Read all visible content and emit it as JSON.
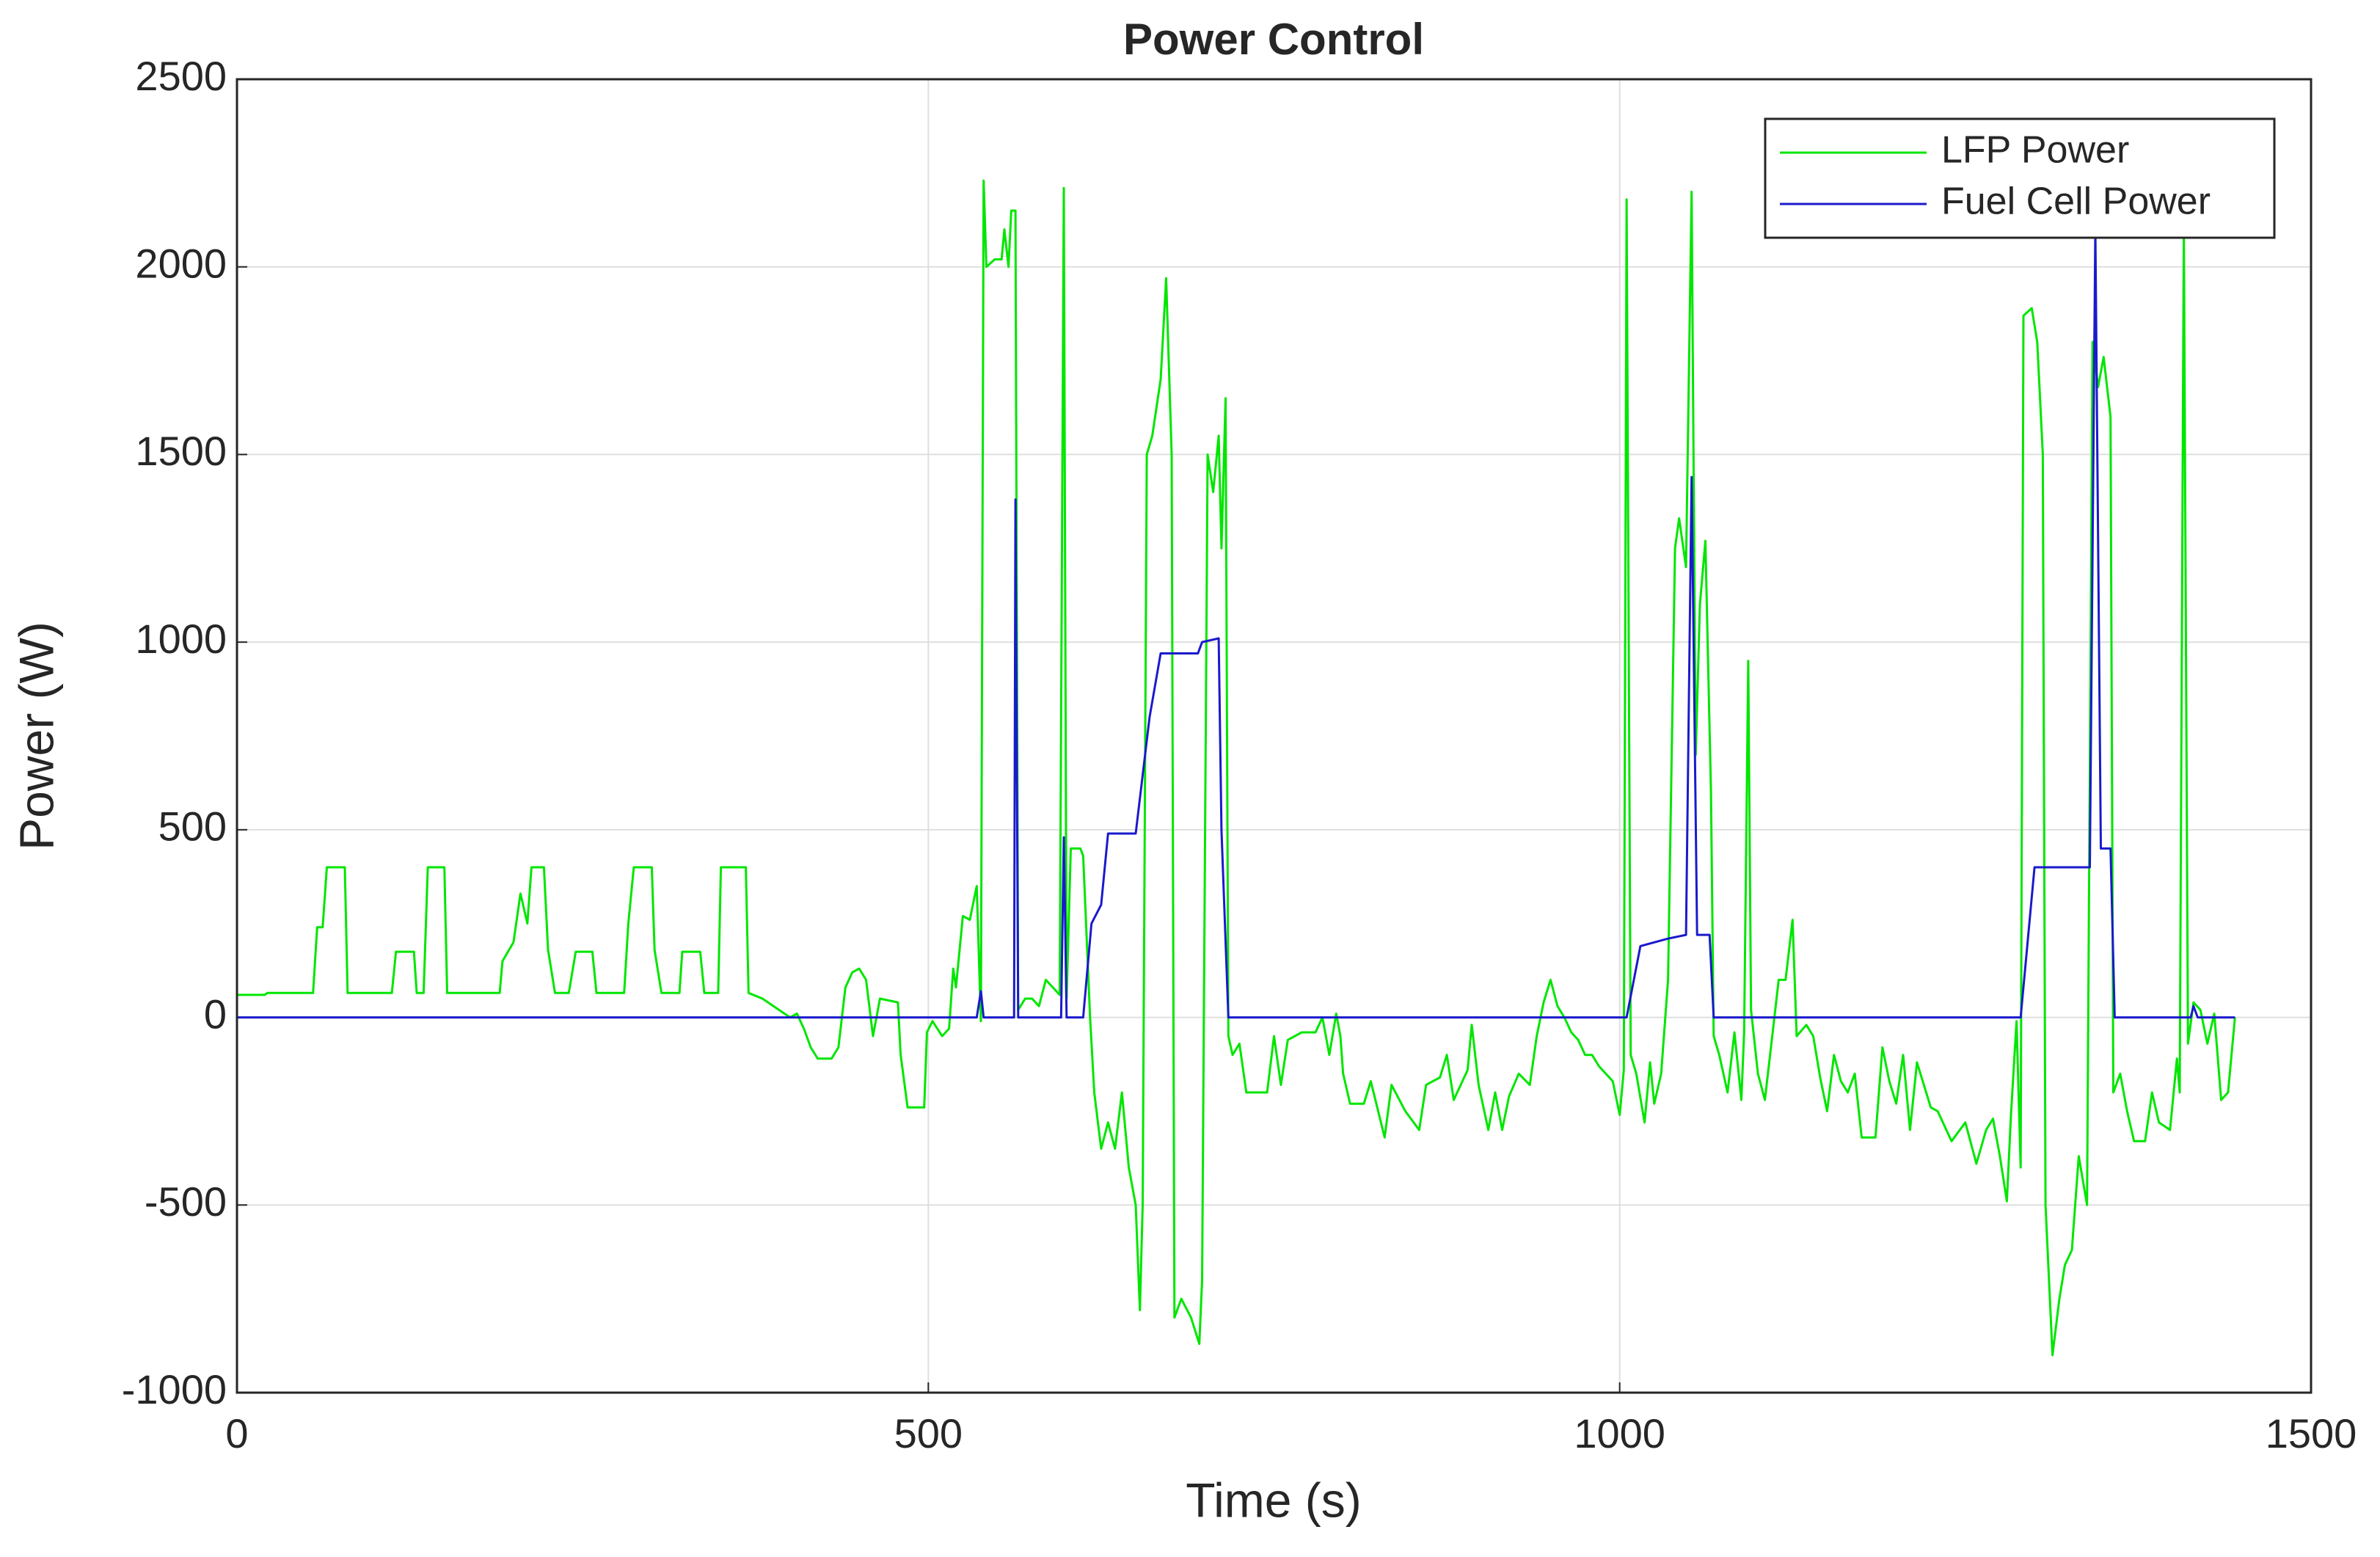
{
  "chart_data": {
    "type": "line",
    "title": "Power Control",
    "x_label": "Time (s)",
    "y_label": "Power (W)",
    "xlim": [
      0,
      1500
    ],
    "xticks": [
      0,
      500,
      1000,
      1500
    ],
    "ylim": [
      -1000,
      2500
    ],
    "yticks": [
      -1000,
      -500,
      0,
      500,
      1000,
      1500,
      2000,
      2500
    ],
    "grid": true,
    "legend": "upper right",
    "series": [
      {
        "name": "LFP Power",
        "color": "#00e600",
        "x": [
          0,
          20,
          22,
          55,
          58,
          62,
          65,
          78,
          80,
          112,
          115,
          128,
          130,
          135,
          138,
          150,
          152,
          190,
          192,
          200,
          205,
          210,
          213,
          222,
          225,
          230,
          240,
          245,
          257,
          260,
          280,
          283,
          287,
          300,
          302,
          307,
          320,
          322,
          335,
          338,
          348,
          350,
          368,
          370,
          380,
          400,
          405,
          410,
          415,
          420,
          430,
          435,
          440,
          445,
          450,
          455,
          460,
          465,
          478,
          480,
          485,
          497,
          499,
          503,
          510,
          515,
          518,
          520,
          525,
          530,
          535,
          538,
          540,
          542,
          548,
          553,
          555,
          558,
          560,
          563,
          565,
          570,
          575,
          580,
          585,
          595,
          598,
          600,
          603,
          610,
          612,
          617,
          620,
          625,
          630,
          635,
          640,
          645,
          650,
          653,
          655,
          658,
          662,
          668,
          672,
          676,
          678,
          683,
          690,
          696,
          698,
          702,
          706,
          710,
          712,
          715,
          717,
          720,
          725,
          730,
          745,
          750,
          755,
          760,
          770,
          780,
          785,
          790,
          795,
          798,
          800,
          805,
          815,
          820,
          830,
          835,
          845,
          855,
          860,
          870,
          875,
          880,
          890,
          893,
          898,
          905,
          910,
          915,
          920,
          927,
          935,
          940,
          945,
          950,
          955,
          960,
          965,
          970,
          975,
          980,
          985,
          990,
          995,
          1000,
          1003,
          1005,
          1008,
          1012,
          1018,
          1022,
          1025,
          1030,
          1035,
          1040,
          1043,
          1048,
          1052,
          1055,
          1058,
          1062,
          1066,
          1068,
          1072,
          1078,
          1083,
          1088,
          1090,
          1093,
          1095,
          1100,
          1105,
          1110,
          1115,
          1120,
          1125,
          1128,
          1135,
          1140,
          1145,
          1150,
          1155,
          1160,
          1165,
          1170,
          1175,
          1185,
          1190,
          1195,
          1200,
          1205,
          1210,
          1215,
          1225,
          1230,
          1240,
          1250,
          1258,
          1265,
          1270,
          1275,
          1280,
          1283,
          1287,
          1290,
          1292,
          1298,
          1302,
          1306,
          1308,
          1313,
          1318,
          1322,
          1327,
          1332,
          1338,
          1342,
          1346,
          1350,
          1355,
          1357,
          1362,
          1367,
          1372,
          1380,
          1385,
          1390,
          1398,
          1403,
          1405,
          1408,
          1411,
          1415,
          1420,
          1425,
          1430,
          1435,
          1440,
          1445
        ],
        "values": [
          60,
          60,
          65,
          65,
          240,
          240,
          400,
          400,
          65,
          65,
          175,
          175,
          65,
          65,
          400,
          400,
          65,
          65,
          150,
          200,
          330,
          250,
          400,
          400,
          180,
          65,
          65,
          175,
          175,
          65,
          65,
          250,
          400,
          400,
          180,
          65,
          65,
          175,
          175,
          65,
          65,
          400,
          400,
          65,
          50,
          0,
          10,
          -30,
          -80,
          -110,
          -110,
          -80,
          80,
          120,
          130,
          100,
          -50,
          50,
          40,
          -100,
          -240,
          -240,
          -40,
          -10,
          -50,
          -30,
          130,
          80,
          270,
          260,
          350,
          -10,
          2230,
          2000,
          2020,
          2020,
          2100,
          2000,
          2150,
          2150,
          20,
          50,
          50,
          30,
          100,
          60,
          2210,
          50,
          450,
          450,
          430,
          0,
          -200,
          -350,
          -280,
          -350,
          -200,
          -400,
          -500,
          -780,
          -500,
          1500,
          1550,
          1700,
          1970,
          1500,
          -800,
          -750,
          -800,
          -870,
          -700,
          1500,
          1400,
          1550,
          1250,
          1650,
          -50,
          -100,
          -70,
          -200,
          -200,
          -50,
          -180,
          -60,
          -40,
          -40,
          0,
          -100,
          10,
          -50,
          -150,
          -230,
          -230,
          -170,
          -320,
          -180,
          -250,
          -300,
          -180,
          -160,
          -100,
          -220,
          -140,
          -20,
          -180,
          -300,
          -200,
          -300,
          -210,
          -150,
          -180,
          -50,
          40,
          100,
          30,
          0,
          -40,
          -60,
          -100,
          -100,
          -130,
          -150,
          -170,
          -260,
          -140,
          2180,
          -100,
          -150,
          -280,
          -120,
          -230,
          -150,
          100,
          1250,
          1330,
          1200,
          2200,
          700,
          1100,
          1270,
          600,
          -50,
          -100,
          -200,
          -40,
          -220,
          -40,
          950,
          20,
          -150,
          -220,
          -60,
          100,
          100,
          260,
          -50,
          -20,
          -50,
          -160,
          -250,
          -100,
          -170,
          -200,
          -150,
          -320,
          -320,
          -80,
          -170,
          -230,
          -100,
          -300,
          -120,
          -240,
          -250,
          -330,
          -280,
          -390,
          -300,
          -270,
          -370,
          -490,
          -260,
          -10,
          -400,
          1870,
          1890,
          1800,
          1500,
          -500,
          -900,
          -750,
          -660,
          -620,
          -370,
          -500,
          1800,
          1680,
          1760,
          1600,
          -200,
          -150,
          -250,
          -330,
          -330,
          -200,
          -280,
          -300,
          -110,
          -200,
          2100,
          -70,
          40,
          20,
          -70,
          10,
          -220,
          -200,
          0
        ]
      },
      {
        "name": "Fuel Cell Power",
        "color": "#1a1acc",
        "x": [
          0,
          535,
          538,
          540,
          562,
          563,
          565,
          596,
          598,
          600,
          612,
          618,
          625,
          630,
          650,
          660,
          668,
          695,
          698,
          710,
          712,
          717,
          1005,
          1015,
          1035,
          1048,
          1052,
          1056,
          1065,
          1068,
          1290,
          1300,
          1340,
          1344,
          1348,
          1355,
          1358,
          1413,
          1415,
          1418,
          1445
        ],
        "values": [
          0,
          0,
          70,
          0,
          0,
          1380,
          0,
          0,
          480,
          0,
          0,
          250,
          300,
          490,
          490,
          800,
          970,
          970,
          1000,
          1010,
          500,
          0,
          0,
          190,
          210,
          220,
          1440,
          220,
          220,
          0,
          0,
          400,
          400,
          2100,
          450,
          450,
          0,
          0,
          30,
          0,
          0
        ]
      }
    ]
  }
}
